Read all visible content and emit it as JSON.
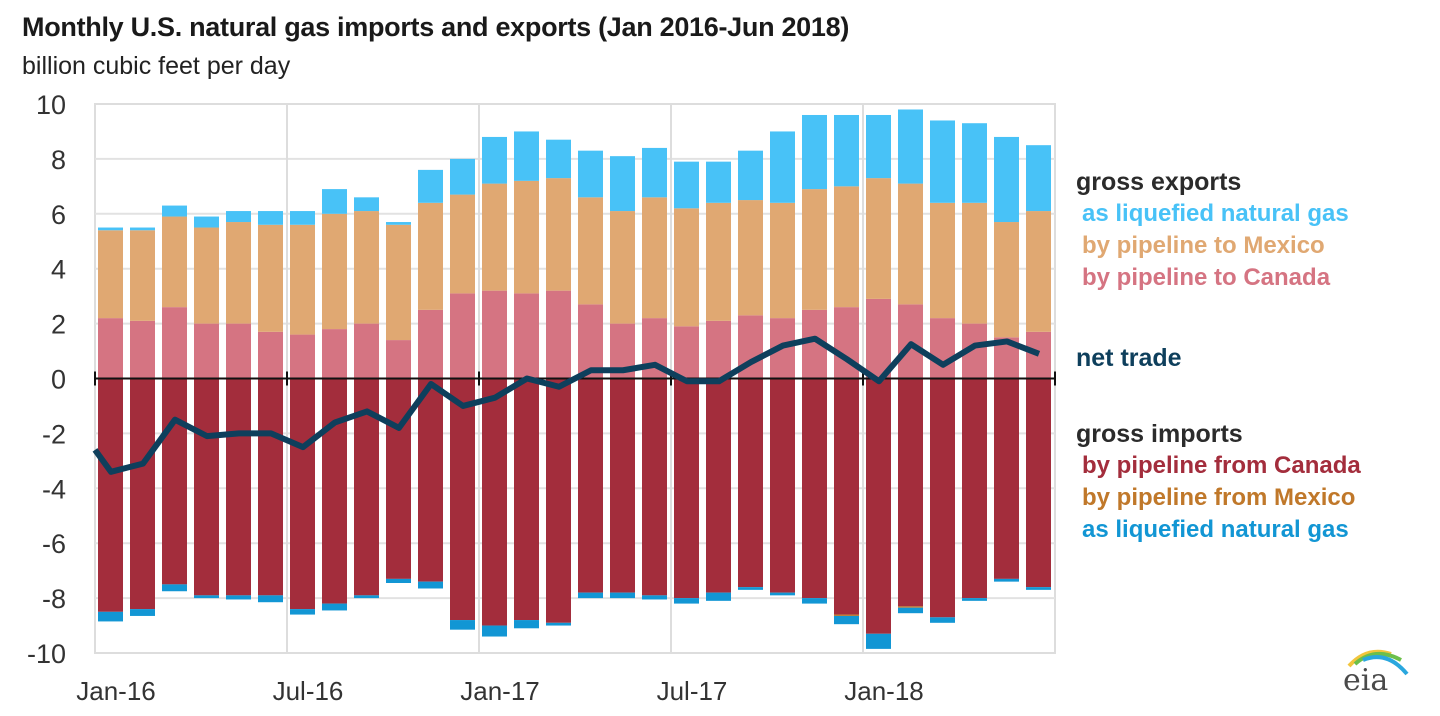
{
  "chart_data": {
    "type": "bar",
    "stacked": true,
    "title": "Monthly U.S. natural gas imports and exports (Jan 2016-Jun 2018)",
    "subtitle": "billion cubic feet per day",
    "xlabel": "",
    "ylabel": "billion cubic feet per day",
    "ylim": [
      -10,
      10
    ],
    "yticks": [
      10,
      8,
      6,
      4,
      2,
      0,
      -2,
      -4,
      -6,
      -8,
      -10
    ],
    "xtick_labels": [
      "Jan-16",
      "Jul-16",
      "Jan-17",
      "Jul-17",
      "Jan-18"
    ],
    "xtick_index": [
      0,
      6,
      12,
      18,
      24
    ],
    "grid": true,
    "categories": [
      "Jan-16",
      "Feb-16",
      "Mar-16",
      "Apr-16",
      "May-16",
      "Jun-16",
      "Jul-16",
      "Aug-16",
      "Sep-16",
      "Oct-16",
      "Nov-16",
      "Dec-16",
      "Jan-17",
      "Feb-17",
      "Mar-17",
      "Apr-17",
      "May-17",
      "Jun-17",
      "Jul-17",
      "Aug-17",
      "Sep-17",
      "Oct-17",
      "Nov-17",
      "Dec-17",
      "Jan-18",
      "Feb-18",
      "Mar-18",
      "Apr-18",
      "May-18",
      "Jun-18"
    ],
    "series": [
      {
        "name": "by pipeline to Canada",
        "group": "gross exports",
        "color": "#d57482",
        "values": [
          2.2,
          2.1,
          2.6,
          2.0,
          2.0,
          1.7,
          1.6,
          1.8,
          2.0,
          1.4,
          2.5,
          3.1,
          3.2,
          3.1,
          3.2,
          2.7,
          2.0,
          2.2,
          1.9,
          2.1,
          2.3,
          2.2,
          2.5,
          2.6,
          2.9,
          2.7,
          2.2,
          2.0,
          1.5,
          1.7
        ]
      },
      {
        "name": "by pipeline to Mexico",
        "group": "gross exports",
        "color": "#e0a872",
        "values": [
          3.2,
          3.3,
          3.3,
          3.5,
          3.7,
          3.9,
          4.0,
          4.2,
          4.1,
          4.2,
          3.9,
          3.6,
          3.9,
          4.1,
          4.1,
          3.9,
          4.1,
          4.4,
          4.3,
          4.3,
          4.2,
          4.2,
          4.4,
          4.4,
          4.4,
          4.4,
          4.2,
          4.4,
          4.2,
          4.4
        ]
      },
      {
        "name": "as liquefied natural gas",
        "group": "gross exports",
        "color": "#48c2f7",
        "values": [
          0.1,
          0.1,
          0.4,
          0.4,
          0.4,
          0.5,
          0.5,
          0.9,
          0.5,
          0.1,
          1.2,
          1.3,
          1.7,
          1.8,
          1.4,
          1.7,
          2.0,
          1.8,
          1.7,
          1.5,
          1.8,
          2.6,
          2.7,
          2.6,
          2.3,
          2.7,
          3.0,
          2.9,
          3.1,
          2.4
        ]
      },
      {
        "name": "by pipeline from Canada",
        "group": "gross imports",
        "color": "#a32d3c",
        "values": [
          -8.5,
          -8.4,
          -7.5,
          -7.9,
          -7.9,
          -7.9,
          -8.4,
          -8.2,
          -7.9,
          -7.3,
          -7.4,
          -8.8,
          -9.0,
          -8.8,
          -8.9,
          -7.8,
          -7.8,
          -7.9,
          -8.0,
          -7.8,
          -7.6,
          -7.8,
          -8.0,
          -8.6,
          -9.3,
          -8.3,
          -8.7,
          -8.0,
          -7.3,
          -7.6
        ]
      },
      {
        "name": "by pipeline from Mexico",
        "group": "gross imports",
        "color": "#c0782a",
        "values": [
          0,
          0,
          0,
          0,
          0,
          0,
          0,
          0,
          0,
          0,
          0,
          0,
          0,
          0,
          0,
          0,
          0,
          0,
          0,
          0,
          0,
          0,
          0,
          -0.05,
          0,
          -0.05,
          0,
          0,
          0,
          0
        ]
      },
      {
        "name": "as liquefied natural gas",
        "group": "gross imports",
        "color": "#1296d4",
        "values": [
          -0.35,
          -0.25,
          -0.25,
          -0.1,
          -0.15,
          -0.25,
          -0.2,
          -0.25,
          -0.1,
          -0.15,
          -0.25,
          -0.35,
          -0.4,
          -0.3,
          -0.1,
          -0.2,
          -0.2,
          -0.15,
          -0.2,
          -0.3,
          -0.1,
          -0.1,
          -0.2,
          -0.3,
          -0.55,
          -0.2,
          -0.2,
          -0.1,
          -0.1,
          -0.1
        ]
      }
    ],
    "line": {
      "name": "net trade",
      "color": "#0e3f5c",
      "start_value": -2.6,
      "values": [
        -3.4,
        -3.1,
        -1.5,
        -2.1,
        -2.0,
        -2.0,
        -2.5,
        -1.6,
        -1.2,
        -1.8,
        -0.2,
        -1.0,
        -0.7,
        0.0,
        -0.3,
        0.3,
        0.3,
        0.5,
        -0.1,
        -0.1,
        0.6,
        1.2,
        1.45,
        0.7,
        -0.1,
        1.25,
        0.5,
        1.2,
        1.35,
        0.9
      ]
    },
    "legend": {
      "placement": "right",
      "exports_heading": "gross exports",
      "exports_items": [
        "as liquefied natural gas",
        "by pipeline to Mexico",
        "by pipeline to Canada"
      ],
      "net_label": "net trade",
      "imports_heading": "gross imports",
      "imports_items": [
        "by pipeline from Canada",
        "by pipeline from Mexico",
        "as liquefied natural gas"
      ]
    }
  },
  "logo": {
    "text": "eia"
  },
  "colors": {
    "lng_export": "#48c2f7",
    "mexico_export": "#e0a872",
    "canada_export": "#d57482",
    "canada_import": "#a32d3c",
    "mexico_import": "#c0782a",
    "lng_import": "#1296d4",
    "net": "#0e3f5c",
    "grid": "#dddddd"
  }
}
